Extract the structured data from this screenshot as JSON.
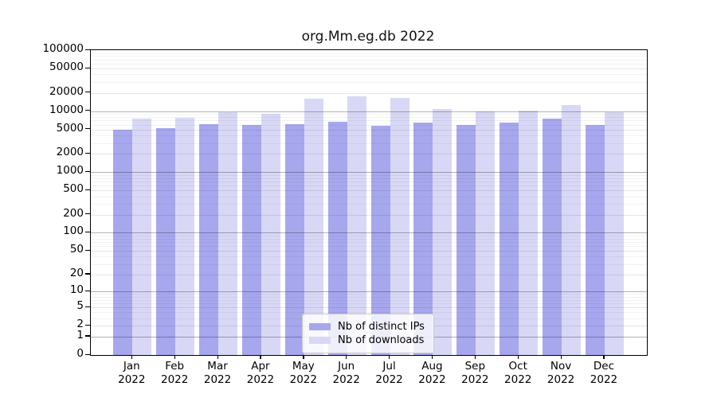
{
  "title": "org.Mm.eg.db 2022",
  "colors": {
    "distinct_ips_bar": "#a7a7ee",
    "downloads_bar": "#d8d8f6",
    "axis": "#000000",
    "grid_major": "#b3b3b3",
    "grid_light": "#e6e6e6",
    "grid_minor": "#f2f2f2",
    "legend_border": "#c9c9c9"
  },
  "chart_data": {
    "type": "bar",
    "title": "org.Mm.eg.db 2022",
    "categories": [
      "Jan 2022",
      "Feb 2022",
      "Mar 2022",
      "Apr 2022",
      "May 2022",
      "Jun 2022",
      "Jul 2022",
      "Aug 2022",
      "Sep 2022",
      "Oct 2022",
      "Nov 2022",
      "Dec 2022"
    ],
    "series": [
      {
        "name": "Nb of distinct IPs",
        "color": "#a7a7ee",
        "values": [
          4900,
          5300,
          6200,
          6000,
          6100,
          6700,
          5700,
          6400,
          5900,
          6400,
          7600,
          5900
        ]
      },
      {
        "name": "Nb of downloads",
        "color": "#d8d8f6",
        "values": [
          7600,
          7700,
          9700,
          9000,
          16000,
          17700,
          16400,
          10900,
          9800,
          10200,
          12400,
          9600
        ]
      }
    ],
    "xlabel": "",
    "ylabel": "",
    "scale": "log1p",
    "ylim": [
      0,
      100000
    ],
    "y_ticks": [
      0,
      1,
      2,
      5,
      10,
      20,
      50,
      100,
      200,
      500,
      1000,
      2000,
      5000,
      10000,
      20000,
      50000,
      100000
    ],
    "y_tick_labels": [
      "0",
      "1",
      "2",
      "5",
      "10",
      "20",
      "50",
      "100",
      "200",
      "500",
      "1000",
      "2000",
      "5000",
      "10000",
      "20000",
      "50000",
      "100000"
    ],
    "grid": true,
    "legend_position": "bottom-center"
  }
}
